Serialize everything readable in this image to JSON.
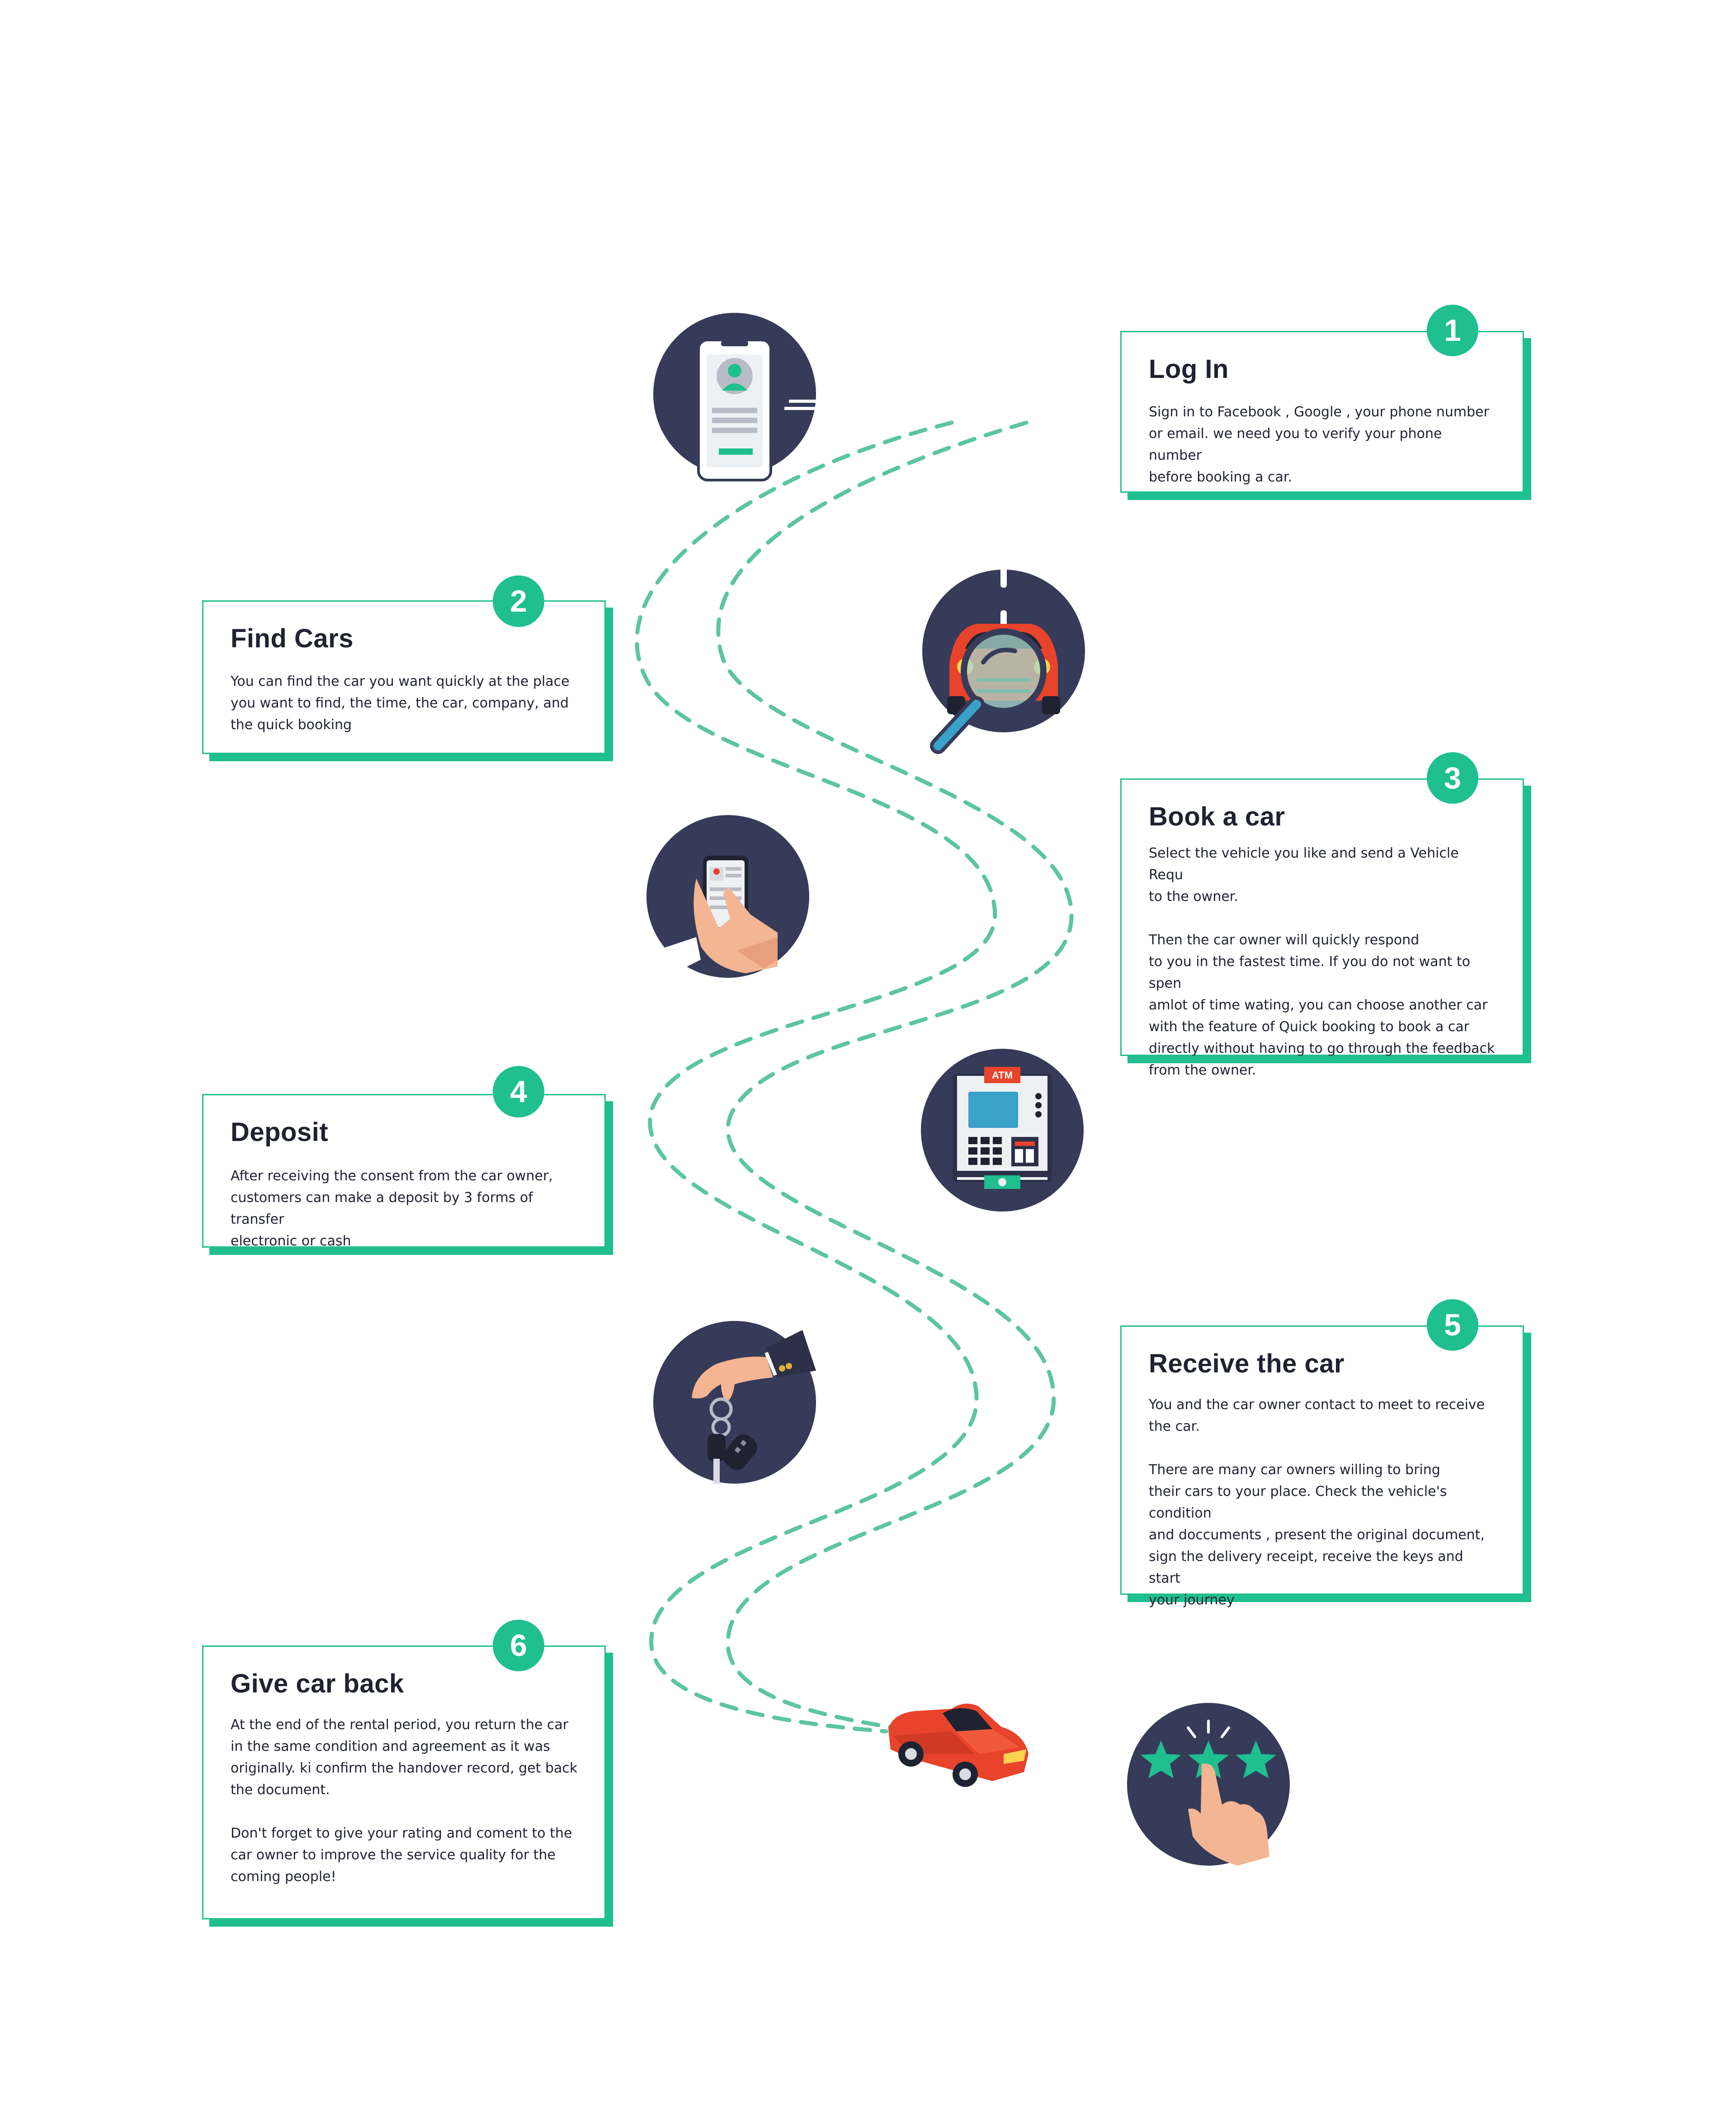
{
  "colors": {
    "accent": "#1fbf8f",
    "navy": "#353b58",
    "car_red": "#e8432b"
  },
  "steps": [
    {
      "number": "1",
      "title": "Log In",
      "description": "Sign in to Facebook , Google , your phone number\nor email. we need you to  verify your phone number\nbefore booking a car.",
      "icon": "phone-profile-icon"
    },
    {
      "number": "2",
      "title": "Find Cars",
      "description": "You can find the car you want quickly at the place\nyou want to find, the time, the car, company, and\nthe quick booking",
      "icon": "car-search-icon"
    },
    {
      "number": "3",
      "title": "Book a car",
      "description": "Select the vehicle you like and send a Vehicle Requ\nto the owner.\n\nThen the car owner will quickly respond\nto you in the fastest time. If you do not want to spen\namlot of time wating, you can choose another car\nwith the feature of Quick booking to book  a car\ndirectly without having to go through the feedback\nfrom the owner.",
      "icon": "phone-booking-icon"
    },
    {
      "number": "4",
      "title": "Deposit",
      "description": "After receiving the consent from the car owner,\ncustomers can make a deposit by 3 forms of transfer\nelectronic or cash",
      "icon": "atm-icon"
    },
    {
      "number": "5",
      "title": "Receive the car",
      "description": "You and the car owner contact to meet to receive\nthe car.\n\nThere are many car owners willing to bring\ntheir cars to your place. Check the vehicle's condition\nand doccuments , present the original document,\nsign the delivery receipt, receive the keys and start\nyour journey",
      "icon": "car-keys-icon"
    },
    {
      "number": "6",
      "title": "Give car back",
      "description": "At the end of the rental period, you return the car\nin the same condition and agreement as it was\noriginally. ki confirm the handover  record, get back\nthe document.\n\nDon't forget to give your rating and coment to the\ncar owner to improve the service quality for the\ncoming people!",
      "icon": "star-rating-icon"
    }
  ],
  "atm_label": "ATM"
}
